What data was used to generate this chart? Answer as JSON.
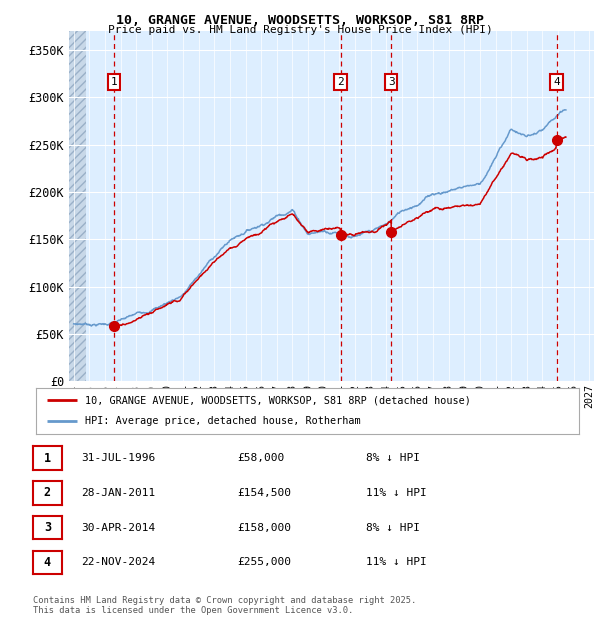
{
  "title_line1": "10, GRANGE AVENUE, WOODSETTS, WORKSOP, S81 8RP",
  "title_line2": "Price paid vs. HM Land Registry's House Price Index (HPI)",
  "ylim": [
    0,
    370000
  ],
  "yticks": [
    0,
    50000,
    100000,
    150000,
    200000,
    250000,
    300000,
    350000
  ],
  "ytick_labels": [
    "£0",
    "£50K",
    "£100K",
    "£150K",
    "£200K",
    "£250K",
    "£300K",
    "£350K"
  ],
  "xlim_start": 1993.7,
  "xlim_end": 2027.3,
  "hpi_color": "#6699cc",
  "price_color": "#cc0000",
  "bg_color": "#ddeeff",
  "dashed_line_color": "#cc0000",
  "sale_points": [
    {
      "date_num": 1996.57,
      "price": 58000,
      "label": "1"
    },
    {
      "date_num": 2011.08,
      "price": 154500,
      "label": "2"
    },
    {
      "date_num": 2014.33,
      "price": 158000,
      "label": "3"
    },
    {
      "date_num": 2024.9,
      "price": 255000,
      "label": "4"
    }
  ],
  "legend_entries": [
    {
      "label": "10, GRANGE AVENUE, WOODSETTS, WORKSOP, S81 8RP (detached house)",
      "color": "#cc0000"
    },
    {
      "label": "HPI: Average price, detached house, Rotherham",
      "color": "#6699cc"
    }
  ],
  "table_rows": [
    {
      "num": "1",
      "date": "31-JUL-1996",
      "price": "£58,000",
      "hpi": "8% ↓ HPI"
    },
    {
      "num": "2",
      "date": "28-JAN-2011",
      "price": "£154,500",
      "hpi": "11% ↓ HPI"
    },
    {
      "num": "3",
      "date": "30-APR-2014",
      "price": "£158,000",
      "hpi": "8% ↓ HPI"
    },
    {
      "num": "4",
      "date": "22-NOV-2024",
      "price": "£255,000",
      "hpi": "11% ↓ HPI"
    }
  ],
  "footnote": "Contains HM Land Registry data © Crown copyright and database right 2025.\nThis data is licensed under the Open Government Licence v3.0."
}
